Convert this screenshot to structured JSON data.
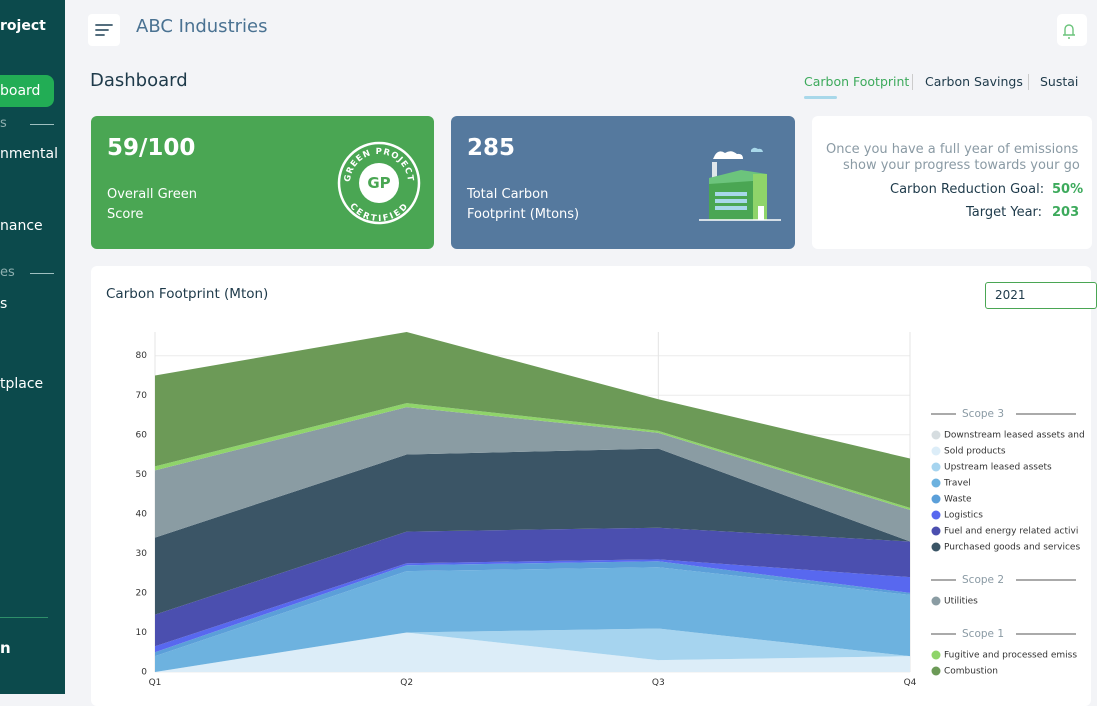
{
  "sidebar": {
    "items": [
      "roject",
      "board",
      "s",
      "nmental",
      "nance",
      "es",
      "s",
      "tplace",
      "n"
    ]
  },
  "header": {
    "title": "ABC Industries"
  },
  "page_title": "Dashboard",
  "tabs": [
    "Carbon Footprint",
    "Carbon Savings",
    "Sustai"
  ],
  "cards": [
    {
      "value": "59/100",
      "label_lines": [
        "Overall Green",
        "Score"
      ]
    },
    {
      "value": 285,
      "label_lines": [
        "Total Carbon",
        "Footprint (Mtons)"
      ]
    }
  ],
  "badge": {
    "top": "GREEN PROJECT",
    "bottom": "CERTIFIED",
    "mark": "GP"
  },
  "goal_card": {
    "lines": [
      "Once you have a full year of emissions",
      "show your progress towards your go"
    ],
    "goal_label": "Carbon Reduction Goal:",
    "goal_value": "50%",
    "year_label": "Target Year:",
    "year_value": "203"
  },
  "year_select": "2021",
  "chart_data": {
    "type": "area",
    "stacked": true,
    "title": "Carbon Footprint (Mton)",
    "categories": [
      "Q1",
      "Q2",
      "Q3",
      "Q4"
    ],
    "ylim": [
      0,
      86
    ],
    "yticks": [
      0,
      10,
      20,
      30,
      40,
      50,
      60,
      70,
      80
    ],
    "grid": true,
    "groups": [
      {
        "title": "Scope 3",
        "series": [
          {
            "name": "Downstream leased assets and",
            "color": "#d6dde0",
            "values": [
              0,
              0,
              0,
              0
            ]
          },
          {
            "name": "Sold products",
            "color": "#dcedf8",
            "values": [
              0,
              10,
              3,
              4
            ]
          },
          {
            "name": "Upstream leased assets",
            "color": "#a6d4ef",
            "values": [
              0,
              0,
              8,
              0
            ]
          },
          {
            "name": "Travel",
            "color": "#6db2df",
            "values": [
              4,
              15.5,
              15.5,
              15.5
            ]
          },
          {
            "name": "Waste",
            "color": "#5b9fd9",
            "values": [
              1,
              1.5,
              1.5,
              0.5
            ]
          },
          {
            "name": "Logistics",
            "color": "#5868ef",
            "values": [
              1.5,
              0.5,
              0.5,
              4
            ]
          },
          {
            "name": "Fuel and energy related activi",
            "color": "#4b4faf",
            "values": [
              8,
              8,
              8,
              9
            ]
          },
          {
            "name": "Purchased goods and services",
            "color": "#3b5566",
            "values": [
              19.5,
              19.5,
              20,
              0
            ]
          }
        ]
      },
      {
        "title": "Scope 2",
        "series": [
          {
            "name": "Utilities",
            "color": "#8a9ca3",
            "values": [
              17,
              12,
              4,
              8
            ]
          }
        ]
      },
      {
        "title": "Scope 1",
        "series": [
          {
            "name": "Fugitive and processed emiss",
            "color": "#8fd46a",
            "values": [
              1,
              1,
              0.5,
              0.5
            ]
          },
          {
            "name": "Combustion",
            "color": "#6c9a57",
            "values": [
              23,
              18,
              8,
              12.5
            ]
          }
        ]
      }
    ]
  }
}
